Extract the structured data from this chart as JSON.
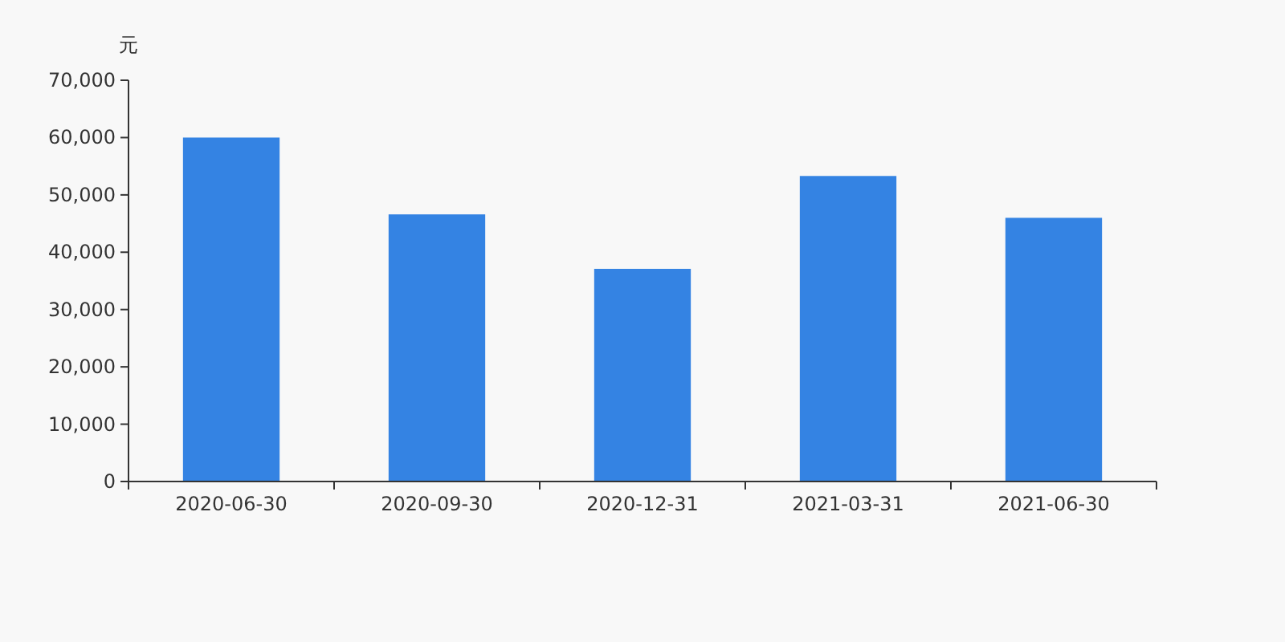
{
  "chart_data": {
    "type": "bar",
    "ylabel": "元",
    "categories": [
      "2020-06-30",
      "2020-09-30",
      "2020-12-31",
      "2021-03-31",
      "2021-06-30"
    ],
    "series": [
      {
        "color": "#3483e3",
        "values": [
          60000,
          46600,
          37100,
          53300,
          46000
        ]
      }
    ],
    "ylim": [
      0,
      70000
    ],
    "yticks": [
      {
        "value": 0,
        "label": "0"
      },
      {
        "value": 10000,
        "label": "10,000"
      },
      {
        "value": 20000,
        "label": "20,000"
      },
      {
        "value": 30000,
        "label": "30,000"
      },
      {
        "value": 40000,
        "label": "40,000"
      },
      {
        "value": 50000,
        "label": "50,000"
      },
      {
        "value": 60000,
        "label": "60,000"
      },
      {
        "value": 70000,
        "label": "70,000"
      }
    ],
    "grid": false
  }
}
